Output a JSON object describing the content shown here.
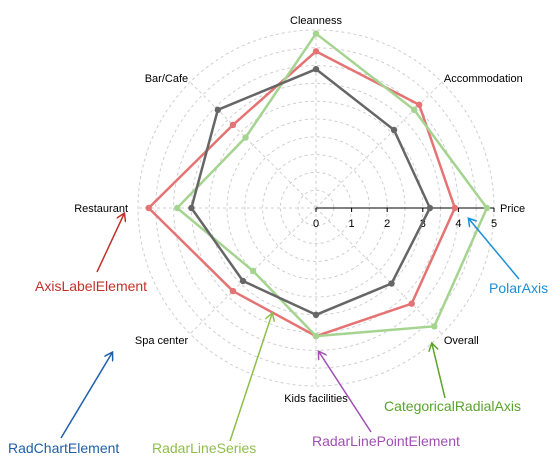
{
  "chart_data": {
    "type": "radar",
    "categories": [
      "Cleanness",
      "Accommodation",
      "Price",
      "Overall",
      "Kids facilities",
      "Spa center",
      "Restaurant",
      "Bar/Cafe"
    ],
    "radial_ticks": [
      "0",
      "1",
      "2",
      "3",
      "4",
      "5"
    ],
    "rmax": 5,
    "grid": true,
    "series": [
      {
        "color": "#e57373",
        "values": [
          4.4,
          4.1,
          3.9,
          3.8,
          3.6,
          3.3,
          4.7,
          3.3
        ]
      },
      {
        "color": "#a5d490",
        "values": [
          4.9,
          3.9,
          4.8,
          4.7,
          3.6,
          2.5,
          3.9,
          2.8
        ]
      },
      {
        "color": "#666666",
        "values": [
          3.9,
          3.1,
          3.2,
          3.0,
          3.0,
          2.9,
          3.5,
          3.9
        ]
      }
    ]
  },
  "annotations": [
    {
      "label": "AxisLabelElement",
      "color": "#c0322b"
    },
    {
      "label": "PolarAxis",
      "color": "#1b8fd6"
    },
    {
      "label": "CategoricalRadialAxis",
      "color": "#5aa42a"
    },
    {
      "label": "RadarLinePointElement",
      "color": "#a04fb3"
    },
    {
      "label": "RadarLineSeries",
      "color": "#8fbf4a"
    },
    {
      "label": "RadChartElement",
      "color": "#1f5fa8"
    }
  ]
}
